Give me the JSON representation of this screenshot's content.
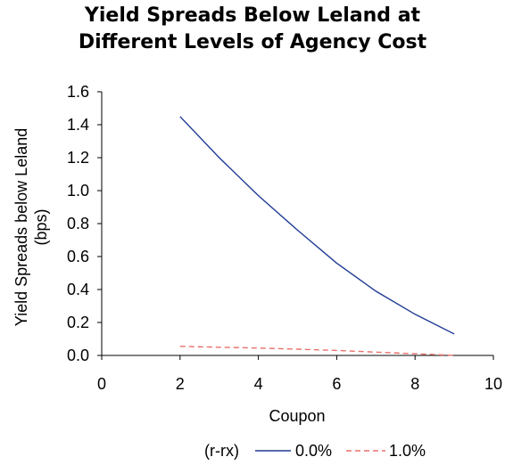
{
  "chart_data": {
    "type": "line",
    "title_lines": [
      "Yield Spreads Below Leland at",
      "Different Levels of Agency Cost"
    ],
    "xlabel": "Coupon",
    "ylabel_lines": [
      "Yield Spreads below Leland",
      "(bps)"
    ],
    "xlim": [
      0,
      10
    ],
    "ylim": [
      0,
      1.6
    ],
    "x_ticks": [
      "0",
      "2",
      "4",
      "6",
      "8",
      "10"
    ],
    "y_ticks": [
      "0.0",
      "0.2",
      "0.4",
      "0.6",
      "0.8",
      "1.0",
      "1.2",
      "1.4",
      "1.6"
    ],
    "legend_title": "(r-rx)",
    "legend_position": "bottom",
    "grid": false,
    "series": [
      {
        "name": "0.0%",
        "color": "#1f3a93",
        "dash": "solid",
        "x": [
          2,
          3,
          4,
          5,
          6,
          7,
          8,
          9
        ],
        "y": [
          1.45,
          1.2,
          0.97,
          0.76,
          0.56,
          0.39,
          0.25,
          0.13
        ]
      },
      {
        "name": "1.0%",
        "color": "#e8706a",
        "dash": "dashed",
        "x": [
          2,
          3,
          4,
          5,
          6,
          7,
          8,
          9
        ],
        "y": [
          0.055,
          0.05,
          0.045,
          0.038,
          0.03,
          0.02,
          0.01,
          0.0
        ]
      }
    ]
  }
}
